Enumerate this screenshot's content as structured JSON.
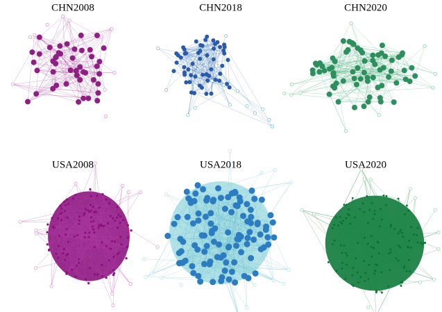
{
  "panels": [
    {
      "title": "CHN2008"
    },
    {
      "title": "CHN2018"
    },
    {
      "title": "CHN2020"
    },
    {
      "title": "USA2008"
    },
    {
      "title": "USA2018"
    },
    {
      "title": "USA2020"
    }
  ]
}
